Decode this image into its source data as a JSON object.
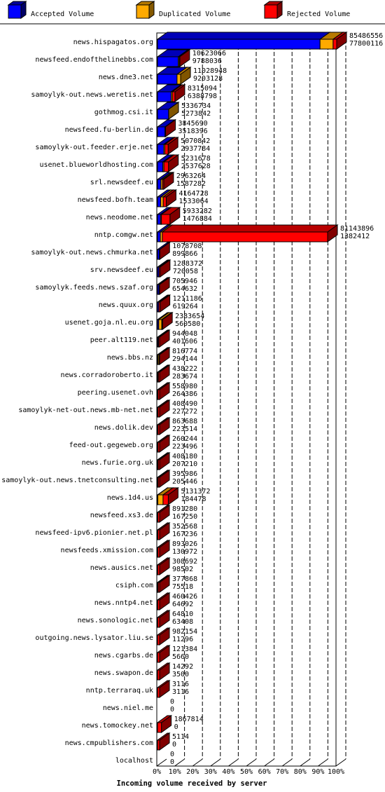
{
  "legend": {
    "accepted_label": "Accepted Volume",
    "duplicated_label": "Duplicated Volume",
    "rejected_label": "Rejected Volume",
    "accepted_color": "#0000ff",
    "duplicated_color": "#ffaa00",
    "rejected_color": "#ff0000"
  },
  "chart_data": {
    "type": "bar",
    "orientation": "horizontal",
    "stacked": true,
    "xlabel": "Incoming volume received by server",
    "x_ticks": [
      "0%",
      "10%",
      "20%",
      "30%",
      "40%",
      "50%",
      "60%",
      "70%",
      "80%",
      "90%",
      "100%"
    ],
    "x_range_percent": [
      0,
      100
    ],
    "grid": true,
    "legend_position": "top",
    "series": [
      {
        "name": "Accepted Volume",
        "color": "#0000ff"
      },
      {
        "name": "Duplicated Volume",
        "color": "#ffaa00"
      },
      {
        "name": "Rejected Volume",
        "color": "#ff0000"
      }
    ],
    "rows": [
      {
        "server": "news.hispagatos.org",
        "total": "85486556",
        "accepted": "77800116",
        "acc_pct": 90.7,
        "dup_pct": 7.3
      },
      {
        "server": "newsfeed.endofthelinebbs.com",
        "total": "10623066",
        "accepted": "9788036",
        "acc_pct": 11.6,
        "dup_pct": 0.5
      },
      {
        "server": "news.dne3.net",
        "total": "11028948",
        "accepted": "9203128",
        "acc_pct": 10.9,
        "dup_pct": 2.1
      },
      {
        "server": "samoylyk-out.news.weretis.net",
        "total": "8315094",
        "accepted": "6388798",
        "acc_pct": 7.6,
        "dup_pct": 0.7
      },
      {
        "server": "gothmog.csi.it",
        "total": "5336734",
        "accepted": "5273842",
        "acc_pct": 6.2,
        "dup_pct": 0.1
      },
      {
        "server": "newsfeed.fu-berlin.de",
        "total": "3845690",
        "accepted": "3518396",
        "acc_pct": 4.2,
        "dup_pct": 0.2
      },
      {
        "server": "samoylyk-out.feeder.erje.net",
        "total": "5070842",
        "accepted": "2937784",
        "acc_pct": 3.5,
        "dup_pct": 0.6
      },
      {
        "server": "usenet.blueworldhosting.com",
        "total": "5231678",
        "accepted": "2537628",
        "acc_pct": 3.0,
        "dup_pct": 0.6
      },
      {
        "server": "srl.newsdeef.eu",
        "total": "2963264",
        "accepted": "1587282",
        "acc_pct": 1.9,
        "dup_pct": 0.9
      },
      {
        "server": "newsfeed.bofh.team",
        "total": "4164728",
        "accepted": "1533064",
        "acc_pct": 1.8,
        "dup_pct": 1.4
      },
      {
        "server": "news.neodome.net",
        "total": "5933282",
        "accepted": "1476884",
        "acc_pct": 1.7,
        "dup_pct": 0.5
      },
      {
        "server": "nntp.comgw.net",
        "total": "81143896",
        "accepted": "1382412",
        "acc_pct": 1.6,
        "dup_pct": 1.1
      },
      {
        "server": "samoylyk-out.news.chmurka.net",
        "total": "1078708",
        "accepted": "899866",
        "acc_pct": 1.1,
        "dup_pct": 0.1
      },
      {
        "server": "srv.newsdeef.eu",
        "total": "1288372",
        "accepted": "720058",
        "acc_pct": 0.8,
        "dup_pct": 0.1
      },
      {
        "server": "samoylyk.feeds.news.szaf.org",
        "total": "705946",
        "accepted": "654632",
        "acc_pct": 0.8,
        "dup_pct": 0.0
      },
      {
        "server": "news.quux.org",
        "total": "1211186",
        "accepted": "619264",
        "acc_pct": 0.7,
        "dup_pct": 0.0
      },
      {
        "server": "usenet.goja.nl.eu.org",
        "total": "2383654",
        "accepted": "560580",
        "acc_pct": 0.7,
        "dup_pct": 1.7
      },
      {
        "server": "peer.alt119.net",
        "total": "944048",
        "accepted": "401606",
        "acc_pct": 0.5,
        "dup_pct": 0.1
      },
      {
        "server": "news.bbs.nz",
        "total": "816774",
        "accepted": "294144",
        "acc_pct": 0.3,
        "dup_pct": 0.6
      },
      {
        "server": "news.corradoroberto.it",
        "total": "438222",
        "accepted": "283674",
        "acc_pct": 0.3,
        "dup_pct": 0.2
      },
      {
        "server": "peering.usenet.ovh",
        "total": "558980",
        "accepted": "264386",
        "acc_pct": 0.3,
        "dup_pct": 0.0
      },
      {
        "server": "samoylyk-net-out.news.mb-net.net",
        "total": "408490",
        "accepted": "227272",
        "acc_pct": 0.3,
        "dup_pct": 0.0
      },
      {
        "server": "news.dolik.dev",
        "total": "863688",
        "accepted": "223514",
        "acc_pct": 0.3,
        "dup_pct": 0.0
      },
      {
        "server": "feed-out.gegeweb.org",
        "total": "260244",
        "accepted": "223496",
        "acc_pct": 0.3,
        "dup_pct": 0.0
      },
      {
        "server": "news.furie.org.uk",
        "total": "408180",
        "accepted": "207210",
        "acc_pct": 0.2,
        "dup_pct": 0.2
      },
      {
        "server": "samoylyk-out.news.tnetconsulting.net",
        "total": "395986",
        "accepted": "205446",
        "acc_pct": 0.2,
        "dup_pct": 0.2
      },
      {
        "server": "news.1d4.us",
        "total": "5131372",
        "accepted": "184478",
        "acc_pct": 0.2,
        "dup_pct": 2.9
      },
      {
        "server": "newsfeed.xs3.de",
        "total": "891280",
        "accepted": "167250",
        "acc_pct": 0.2,
        "dup_pct": 0.0
      },
      {
        "server": "newsfeed-ipv6.pionier.net.pl",
        "total": "352568",
        "accepted": "167236",
        "acc_pct": 0.2,
        "dup_pct": 0.0
      },
      {
        "server": "newsfeeds.xmission.com",
        "total": "893026",
        "accepted": "130972",
        "acc_pct": 0.2,
        "dup_pct": 0.0
      },
      {
        "server": "news.ausics.net",
        "total": "308692",
        "accepted": "98502",
        "acc_pct": 0.1,
        "dup_pct": 0.0
      },
      {
        "server": "csiph.com",
        "total": "377868",
        "accepted": "75518",
        "acc_pct": 0.1,
        "dup_pct": 0.3
      },
      {
        "server": "news.nntp4.net",
        "total": "460426",
        "accepted": "64692",
        "acc_pct": 0.1,
        "dup_pct": 0.0
      },
      {
        "server": "news.sonologic.net",
        "total": "64810",
        "accepted": "63408",
        "acc_pct": 0.1,
        "dup_pct": 0.0
      },
      {
        "server": "outgoing.news.lysator.liu.se",
        "total": "982154",
        "accepted": "11296",
        "acc_pct": 0.0,
        "dup_pct": 0.0
      },
      {
        "server": "news.cgarbs.de",
        "total": "121384",
        "accepted": "5660",
        "acc_pct": 0.0,
        "dup_pct": 0.0
      },
      {
        "server": "news.swapon.de",
        "total": "14292",
        "accepted": "3500",
        "acc_pct": 0.0,
        "dup_pct": 0.0
      },
      {
        "server": "nntp.terraraq.uk",
        "total": "3116",
        "accepted": "3116",
        "acc_pct": 0.0,
        "dup_pct": 0.0
      },
      {
        "server": "news.niel.me",
        "total": "0",
        "accepted": "0",
        "acc_pct": 0.0,
        "dup_pct": 0.0
      },
      {
        "server": "news.tomockey.net",
        "total": "1867814",
        "accepted": "0",
        "acc_pct": 0.0,
        "dup_pct": 0.0
      },
      {
        "server": "news.cmpublishers.com",
        "total": "5114",
        "accepted": "0",
        "acc_pct": 0.0,
        "dup_pct": 0.0
      },
      {
        "server": "localhost",
        "total": "0",
        "accepted": "0",
        "acc_pct": 0.0,
        "dup_pct": 0.0
      }
    ]
  }
}
